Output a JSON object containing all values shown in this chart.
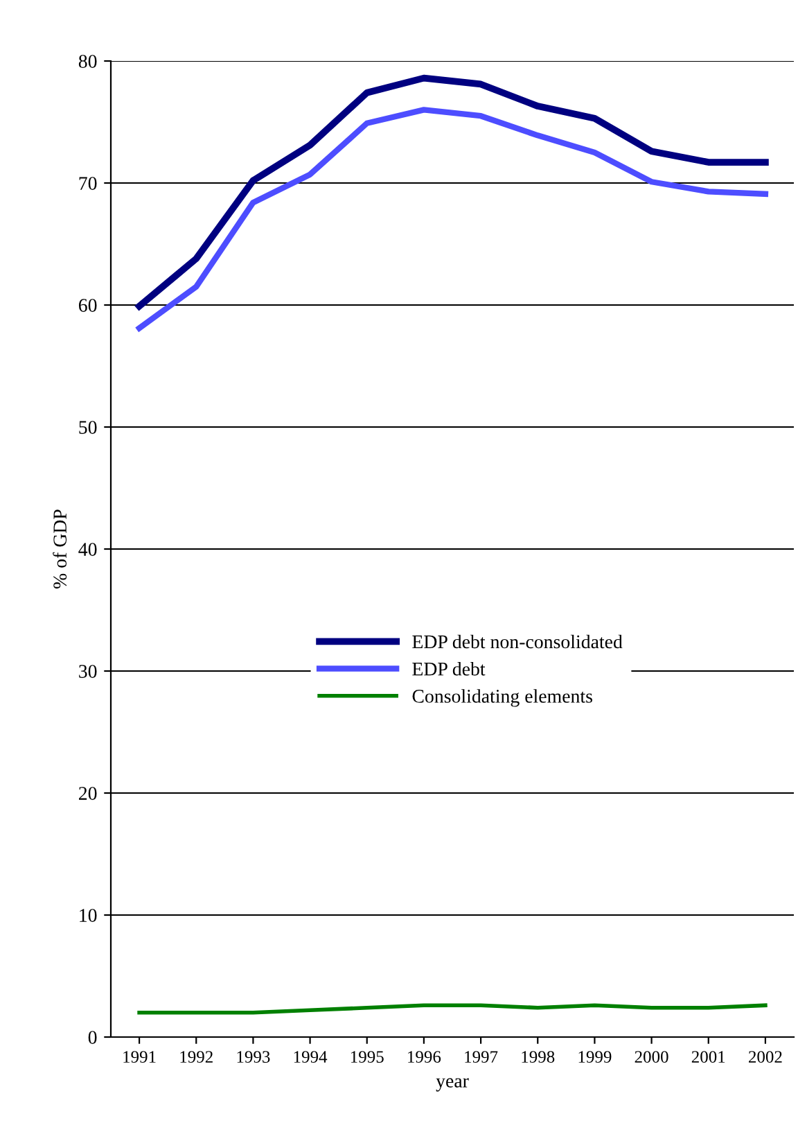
{
  "chart_data": {
    "type": "line",
    "xlabel": "year",
    "ylabel": "% of GDP",
    "categories": [
      "1991",
      "1992",
      "1993",
      "1994",
      "1995",
      "1996",
      "1997",
      "1998",
      "1999",
      "2000",
      "2001",
      "2002"
    ],
    "series": [
      {
        "name": "EDP debt non-consolidated",
        "color": "#000080",
        "values": [
          59.9,
          63.8,
          70.2,
          73.1,
          77.4,
          78.6,
          78.1,
          76.3,
          75.3,
          72.6,
          71.7,
          71.7
        ]
      },
      {
        "name": "EDP debt",
        "color": "#4d4dff",
        "values": [
          58.1,
          61.5,
          68.4,
          70.7,
          74.9,
          76.0,
          75.5,
          73.9,
          72.5,
          70.1,
          69.3,
          69.1
        ]
      },
      {
        "name": "Consolidating elements",
        "color": "#008000",
        "values": [
          2.0,
          2.0,
          2.0,
          2.2,
          2.4,
          2.6,
          2.6,
          2.4,
          2.6,
          2.4,
          2.4,
          2.6
        ]
      }
    ],
    "ylim": [
      0,
      80
    ],
    "yticks": [
      0,
      10,
      20,
      30,
      40,
      50,
      60,
      70,
      80
    ],
    "grid": "y",
    "legend": "center",
    "marker": "none",
    "line_style": "solid"
  }
}
